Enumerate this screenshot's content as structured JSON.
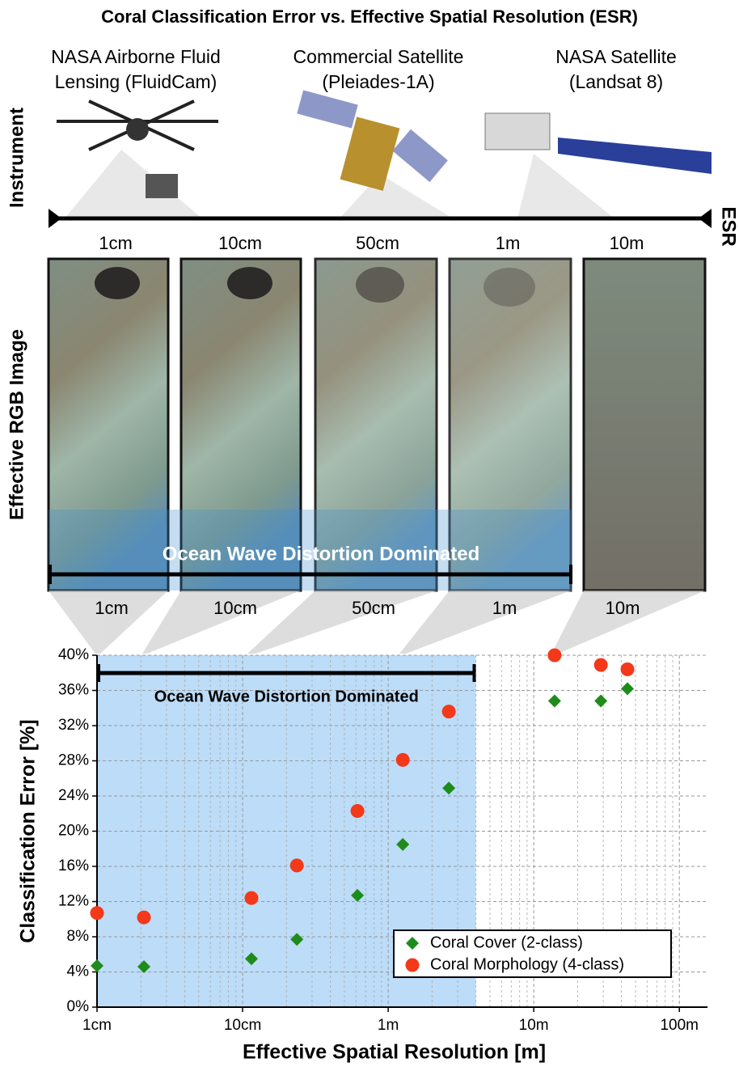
{
  "figure": {
    "title": "Coral Classification Error vs. Effective Spatial Resolution (ESR)",
    "instrument_label": "Instrument",
    "instruments": [
      [
        "NASA Airborne Fluid",
        "Lensing (FluidCam)"
      ],
      [
        "Commercial Satellite",
        "(Pleiades-1A)"
      ],
      [
        "NASA Satellite",
        "(Landsat 8)"
      ]
    ],
    "esr_label": "ESR",
    "image_label": "Effective RGB Image",
    "esr_top": [
      "1cm",
      "10cm",
      "50cm",
      "1m",
      "10m"
    ],
    "esr_bottom": [
      "1cm",
      "10cm",
      "50cm",
      "1m",
      "10m"
    ],
    "banner": "Ocean Wave Distortion Dominated"
  },
  "chart_data": {
    "type": "scatter",
    "x_label": "Effective Spatial Resolution [m]",
    "y_label": "Classification Error [%]",
    "annotation": "Ocean Wave Distortion Dominated",
    "xscale": "log",
    "xlim": [
      0.01,
      156
    ],
    "ylim": [
      0,
      40
    ],
    "xticks": [
      {
        "value": 0.01,
        "label": "1cm"
      },
      {
        "value": 0.1,
        "label": "10cm"
      },
      {
        "value": 1,
        "label": "1m"
      },
      {
        "value": 10,
        "label": "10m"
      },
      {
        "value": 100,
        "label": "100m"
      }
    ],
    "yticks": [
      {
        "value": 0,
        "label": "0%"
      },
      {
        "value": 4,
        "label": "4%"
      },
      {
        "value": 8,
        "label": "8%"
      },
      {
        "value": 12,
        "label": "12%"
      },
      {
        "value": 16,
        "label": "16%"
      },
      {
        "value": 20,
        "label": "20%"
      },
      {
        "value": 24,
        "label": "24%"
      },
      {
        "value": 28,
        "label": "28%"
      },
      {
        "value": 32,
        "label": "32%"
      },
      {
        "value": 36,
        "label": "36%"
      },
      {
        "value": 40,
        "label": "40%"
      }
    ],
    "grid": true,
    "legend": "lower right",
    "shaded_region": {
      "x": [
        0.01,
        4
      ],
      "color": "#bcdcf8"
    },
    "series": [
      {
        "name": "Coral Cover (2-class)",
        "color": "#1e8c1a",
        "marker": "diamond",
        "x": [
          0.01,
          0.021,
          0.115,
          0.236,
          0.615,
          1.26,
          2.61,
          13.9,
          28.9,
          44
        ],
        "values": [
          4.7,
          4.6,
          5.5,
          7.7,
          12.7,
          18.5,
          24.9,
          34.8,
          34.8,
          36.2
        ]
      },
      {
        "name": "Coral Morphology (4-class)",
        "color": "#f4381a",
        "marker": "circle",
        "x": [
          0.01,
          0.021,
          0.115,
          0.236,
          0.615,
          1.26,
          2.61,
          13.9,
          28.9,
          44
        ],
        "values": [
          10.7,
          10.2,
          12.4,
          16.1,
          22.3,
          28.1,
          33.6,
          40.0,
          38.9,
          38.4
        ]
      }
    ]
  }
}
